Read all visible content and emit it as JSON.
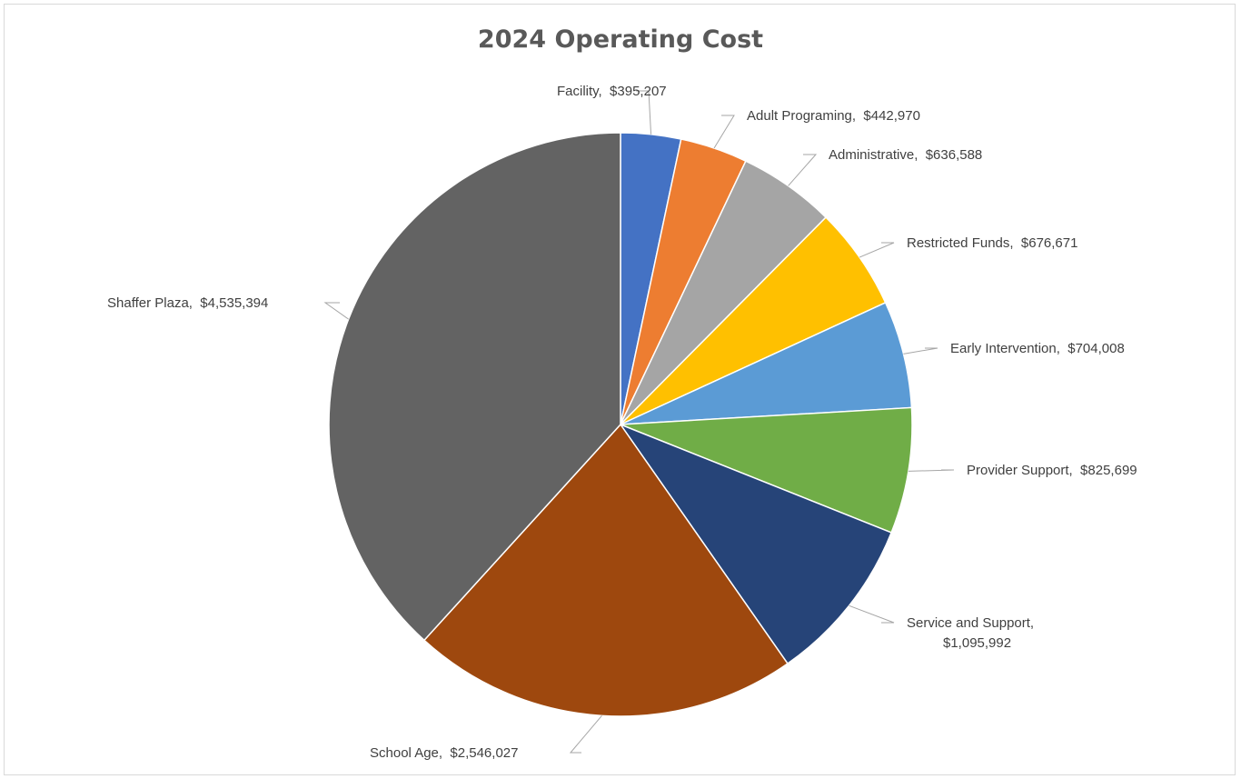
{
  "chart_data": {
    "type": "pie",
    "title": "2024 Operating Cost",
    "slices": [
      {
        "name": "Facility",
        "value": 395207,
        "label": "Facility,  $395,207",
        "color": "#4472C4"
      },
      {
        "name": "Adult Programing",
        "value": 442970,
        "label": "Adult Programing,  $442,970",
        "color": "#ED7D31"
      },
      {
        "name": "Administrative",
        "value": 636588,
        "label": "Administrative,  $636,588",
        "color": "#A5A5A5"
      },
      {
        "name": "Restricted Funds",
        "value": 676671,
        "label": "Restricted Funds,  $676,671",
        "color": "#FFC000"
      },
      {
        "name": "Early Intervention",
        "value": 704008,
        "label": "Early Intervention,  $704,008",
        "color": "#5B9BD5"
      },
      {
        "name": "Provider Support",
        "value": 825699,
        "label": "Provider Support,  $825,699",
        "color": "#70AD47"
      },
      {
        "name": "Service and Support",
        "value": 1095992,
        "label": "Service and Support,\n$1,095,992",
        "color": "#264478"
      },
      {
        "name": "School Age",
        "value": 2546027,
        "label": "School Age,  $2,546,027",
        "color": "#9E480E"
      },
      {
        "name": "Shaffer Plaza",
        "value": 4535394,
        "label": "Shaffer Plaza,  $4,535,394",
        "color": "#636363"
      }
    ]
  }
}
